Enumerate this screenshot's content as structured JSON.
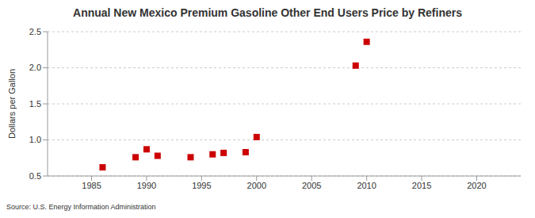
{
  "chart_data": {
    "type": "scatter",
    "title": "Annual New Mexico Premium Gasoline Other End Users Price by Refiners",
    "y_label": "Dollars per Gallon",
    "source": "Source: U.S. Energy Information Administration",
    "x": [
      1986,
      1989,
      1990,
      1991,
      1994,
      1996,
      1997,
      1999,
      2000,
      2009,
      2010
    ],
    "values": [
      0.62,
      0.76,
      0.87,
      0.78,
      0.76,
      0.8,
      0.82,
      0.83,
      1.04,
      2.03,
      2.36
    ],
    "color": "#cc0000",
    "marker": "square",
    "xlim": [
      1981,
      2024
    ],
    "xticks": [
      1985,
      1990,
      1995,
      2000,
      2005,
      2010,
      2015,
      2020
    ],
    "ylim": [
      0.5,
      2.5
    ],
    "yticks": [
      0.5,
      {
        "value": 1.0,
        "label": "1.0"
      },
      1.5,
      {
        "value": 2.0,
        "label": "2.0"
      },
      2.5
    ],
    "grid": true
  }
}
